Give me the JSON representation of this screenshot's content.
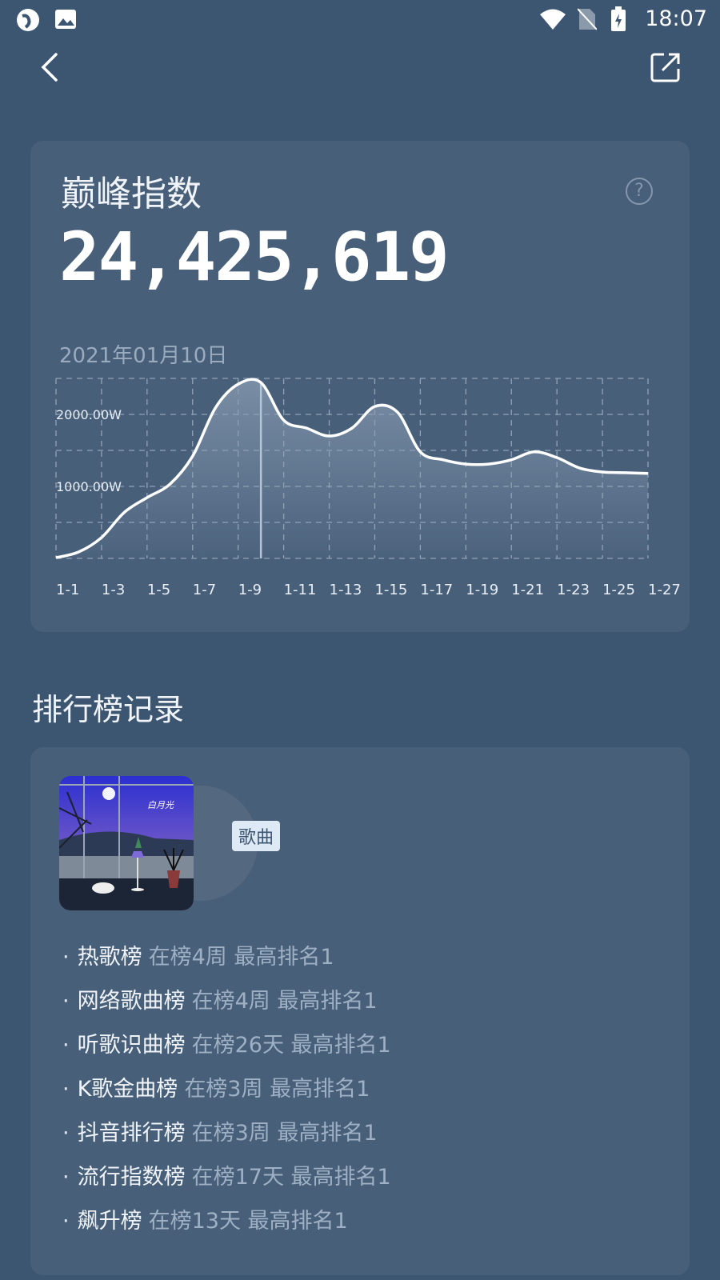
{
  "status_bar": {
    "time": "18:07",
    "icons": [
      "browser-icon",
      "image-icon",
      "wifi-icon",
      "no-sim-icon",
      "battery-charging-icon"
    ]
  },
  "top_bar": {
    "back_icon": "chevron-left-icon",
    "share_icon": "share-external-icon"
  },
  "peak_card": {
    "title": "巅峰指数",
    "value": "24,425,619",
    "date": "2021年01月10日",
    "help_icon": "?"
  },
  "chart_data": {
    "type": "area",
    "x": [
      "1-1",
      "1-2",
      "1-3",
      "1-4",
      "1-5",
      "1-6",
      "1-7",
      "1-8",
      "1-9",
      "1-10",
      "1-11",
      "1-12",
      "1-13",
      "1-14",
      "1-15",
      "1-16",
      "1-17",
      "1-18",
      "1-19",
      "1-20",
      "1-21",
      "1-22",
      "1-23",
      "1-24",
      "1-25",
      "1-26",
      "1-27"
    ],
    "values": [
      10,
      90,
      290,
      640,
      845,
      1030,
      1420,
      2090,
      2420,
      2442,
      1920,
      1810,
      1700,
      1810,
      2110,
      2030,
      1480,
      1370,
      1310,
      1310,
      1370,
      1480,
      1400,
      1255,
      1200,
      1190,
      1180
    ],
    "tick_labels": [
      "1-1",
      "1-3",
      "1-5",
      "1-7",
      "1-9",
      "1-11",
      "1-13",
      "1-15",
      "1-17",
      "1-19",
      "1-21",
      "1-23",
      "1-25",
      "1-27"
    ],
    "y_tick_labels": [
      {
        "value": 1000,
        "label": "1000.00W"
      },
      {
        "value": 2000,
        "label": "2000.00W"
      }
    ],
    "unit": "W",
    "ylim": [
      0,
      2500
    ],
    "grid": true,
    "selected": "1-10",
    "line_color": "#ffffff"
  },
  "chart_section": {
    "title": "排行榜记录"
  },
  "record_card": {
    "type_tag": "歌曲",
    "entries": [
      {
        "name": "热歌榜",
        "meta": "在榜4周 最高排名1"
      },
      {
        "name": "网络歌曲榜",
        "meta": "在榜4周 最高排名1"
      },
      {
        "name": "听歌识曲榜",
        "meta": "在榜26天 最高排名1"
      },
      {
        "name": "K歌金曲榜",
        "meta": "在榜3周 最高排名1"
      },
      {
        "name": "抖音排行榜",
        "meta": "在榜3周 最高排名1"
      },
      {
        "name": "流行指数榜",
        "meta": "在榜17天 最高排名1"
      },
      {
        "name": "飙升榜",
        "meta": "在榜13天 最高排名1"
      }
    ]
  }
}
